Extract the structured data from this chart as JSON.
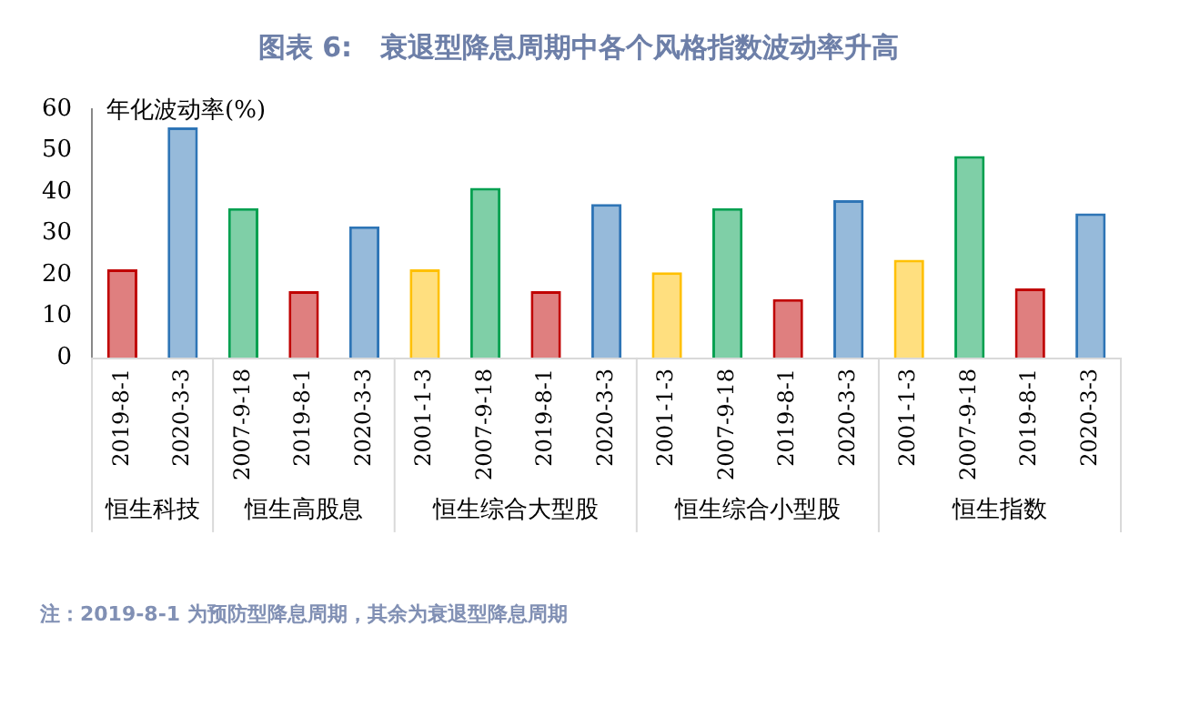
{
  "chart_data": {
    "type": "bar",
    "title": "图表 6:   衰退型降息周期中各个风格指数波动率升高",
    "ylabel": "年化波动率(%)",
    "categories": [
      "2019-8-1",
      "2020-3-3",
      "2007-9-18",
      "2019-8-1",
      "2020-3-3",
      "2001-1-3",
      "2007-9-18",
      "2019-8-1",
      "2020-3-3",
      "2001-1-3",
      "2007-9-18",
      "2019-8-1",
      "2020-3-3",
      "2001-1-3",
      "2007-9-18",
      "2019-8-1",
      "2020-3-3"
    ],
    "values": [
      21.3,
      55.6,
      36.1,
      16.0,
      31.7,
      21.3,
      41.0,
      16.0,
      37.1,
      20.6,
      36.1,
      14.1,
      38.0,
      23.6,
      48.7,
      16.7,
      34.8
    ],
    "colors": [
      "#c00000",
      "#2e75b6",
      "#00a050",
      "#c00000",
      "#2e75b6",
      "#ffc000",
      "#00a050",
      "#c00000",
      "#2e75b6",
      "#ffc000",
      "#00a050",
      "#c00000",
      "#2e75b6",
      "#ffc000",
      "#00a050",
      "#c00000",
      "#2e75b6"
    ],
    "ylim": [
      0,
      60
    ],
    "yticks": [
      0,
      10,
      20,
      30,
      40,
      50,
      60
    ],
    "grid": false,
    "legend": false,
    "annotations": [
      "恒生科技",
      "恒生高股息",
      "恒生综合大型股",
      "恒生综合小型股",
      "恒生指数",
      "注：2019-8-1 为预防型降息周期，其余为衰退型降息周期"
    ]
  }
}
